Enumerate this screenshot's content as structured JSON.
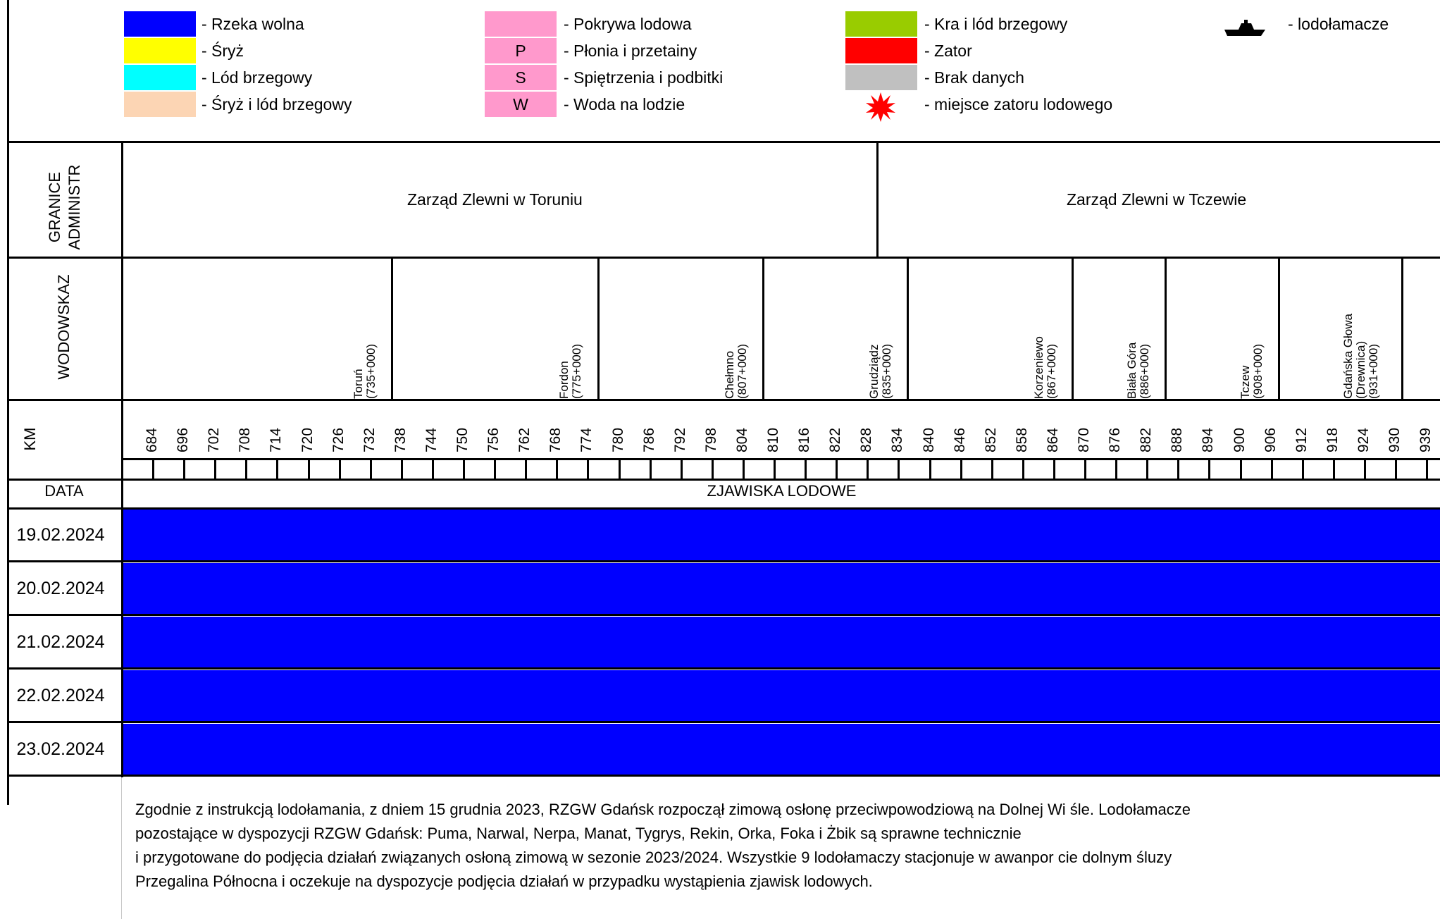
{
  "legend": {
    "col1": [
      {
        "swatch": "",
        "color": "#0000FF",
        "label": "- Rzeka wolna"
      },
      {
        "swatch": "",
        "color": "#FFFF00",
        "label": "- Śryż"
      },
      {
        "swatch": "",
        "color": "#00FFFF",
        "label": "- Lód brzegowy"
      },
      {
        "swatch": "",
        "color": "#FCD5B4",
        "label": "- Śryż i lód brzegowy"
      }
    ],
    "col2": [
      {
        "swatch": "",
        "color": "#FF99CC",
        "label": "- Pokrywa lodowa"
      },
      {
        "swatch": "P",
        "color": "#FF99CC",
        "label": "- Płonia i przetainy"
      },
      {
        "swatch": "S",
        "color": "#FF99CC",
        "label": "- Spiętrzenia i podbitki"
      },
      {
        "swatch": "W",
        "color": "#FF99CC",
        "label": "- Woda na lodzie"
      }
    ],
    "col3": [
      {
        "swatch": "",
        "color": "#99CC00",
        "label": "- Kra i lód brzegowy"
      },
      {
        "swatch": "",
        "color": "#FF0000",
        "label": "- Zator"
      },
      {
        "swatch": "",
        "color": "#C0C0C0",
        "label": "- Brak danych"
      },
      {
        "icon": "jam-star-icon",
        "color": "#FF0000",
        "label": "- miejsce zatoru lodowego"
      }
    ],
    "col4": [
      {
        "icon": "icebreaker-ship-icon",
        "label": "- lodołamacze"
      }
    ]
  },
  "row_headers": {
    "granice": "GRANICE ADMINISTR",
    "wodowskaz": "WODOWSKAZ",
    "km": "KM",
    "data": "DATA"
  },
  "zones": [
    {
      "name": "Zarząd Zlewni w Toruniu"
    },
    {
      "name": "Zarząd Zlewni w Tczewie"
    }
  ],
  "gauges": [
    {
      "name": "Toruń",
      "km": "(735+000)"
    },
    {
      "name": "Fordon",
      "km": "(775+000)"
    },
    {
      "name": "Chełmno",
      "km": "(807+000)"
    },
    {
      "name": "Grudziądz",
      "km": "(835+000)"
    },
    {
      "name": "Korzeniewo",
      "km": "(867+000)"
    },
    {
      "name": "Biała Góra",
      "km": "(886+000)"
    },
    {
      "name": "Tczew",
      "km": "(908+000)"
    },
    {
      "name": "Gdańska Głowa",
      "extra": "(Drewnica)",
      "km": "(931+000)"
    }
  ],
  "chart_data": {
    "type": "heatmap",
    "title": "ZJAWISKA LODOWE",
    "x_axis_label": "KM",
    "km_ticks": [
      "684",
      "696",
      "702",
      "708",
      "714",
      "720",
      "726",
      "732",
      "738",
      "744",
      "750",
      "756",
      "762",
      "768",
      "774",
      "780",
      "786",
      "792",
      "798",
      "804",
      "810",
      "816",
      "822",
      "828",
      "834",
      "840",
      "846",
      "852",
      "858",
      "864",
      "870",
      "876",
      "882",
      "888",
      "894",
      "900",
      "906",
      "912",
      "918",
      "924",
      "930",
      "939"
    ],
    "dates": [
      "19.02.2024",
      "20.02.2024",
      "21.02.2024",
      "22.02.2024",
      "23.02.2024"
    ],
    "rows": [
      {
        "date": "19.02.2024",
        "km_from": 684,
        "km_to": 939,
        "state": "Rzeka wolna",
        "color": "#0000FF"
      },
      {
        "date": "20.02.2024",
        "km_from": 684,
        "km_to": 939,
        "state": "Rzeka wolna",
        "color": "#0000FF"
      },
      {
        "date": "21.02.2024",
        "km_from": 684,
        "km_to": 939,
        "state": "Rzeka wolna",
        "color": "#0000FF"
      },
      {
        "date": "22.02.2024",
        "km_from": 684,
        "km_to": 939,
        "state": "Rzeka wolna",
        "color": "#0000FF"
      },
      {
        "date": "23.02.2024",
        "km_from": 684,
        "km_to": 939,
        "state": "Rzeka wolna",
        "color": "#0000FF"
      }
    ]
  },
  "note": {
    "line1": "Zgodnie z instrukcją lodołamania, z dniem 15 grudnia 2023, RZGW Gdańsk rozpoczął zimową osłonę przeciwpowodziową na Dolnej Wi śle. Lodołamacze",
    "line2": "pozostające w dyspozycji RZGW Gdańsk: Puma, Narwal, Nerpa, Manat, Tygrys, Rekin, Orka, Foka i Żbik są sprawne technicznie",
    "line3": "i przygotowane do podjęcia działań związanych osłoną zimową w sezonie 2023/2024. Wszystkie 9 lodołamaczy stacjonuje w awanpor cie dolnym śluzy",
    "line4": "Przegalina Północna i oczekuje na dyspozycje podjęcia działań w przypadku wystąpienia zjawisk lodowych."
  }
}
